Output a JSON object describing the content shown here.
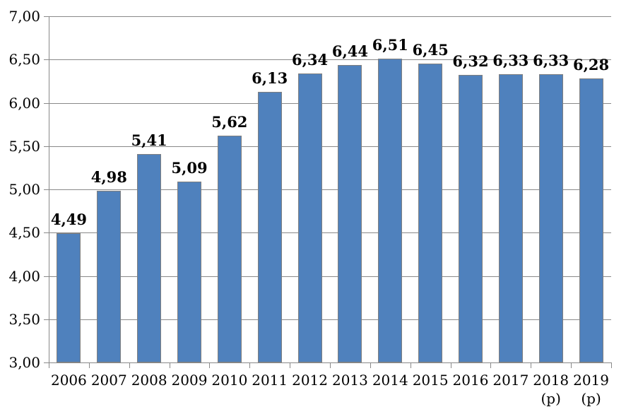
{
  "chart_data": {
    "type": "bar",
    "title": "",
    "xlabel": "",
    "ylabel": "",
    "categories": [
      "2006",
      "2007",
      "2008",
      "2009",
      "2010",
      "2011",
      "2012",
      "2013",
      "2014",
      "2015",
      "2016",
      "2017",
      "2018",
      "2019"
    ],
    "category_suffixes": [
      "",
      "",
      "",
      "",
      "",
      "",
      "",
      "",
      "",
      "",
      "",
      "",
      "(p)",
      "(p)"
    ],
    "values": [
      4.49,
      4.98,
      5.41,
      5.09,
      5.62,
      6.13,
      6.34,
      6.44,
      6.51,
      6.45,
      6.32,
      6.33,
      6.33,
      6.28
    ],
    "value_labels": [
      "4,49",
      "4,98",
      "5,41",
      "5,09",
      "5,62",
      "6,13",
      "6,34",
      "6,44",
      "6,51",
      "6,45",
      "6,32",
      "6,33",
      "6,33",
      "6,28"
    ],
    "ylim": [
      3.0,
      7.0
    ],
    "ytick_step": 0.5,
    "ytick_labels_top_to_bottom": [
      "7,00",
      "6,50",
      "6,00",
      "5,50",
      "5,00",
      "4,50",
      "4,00",
      "3,50",
      "3,00"
    ],
    "grid_on": true,
    "legend": "none",
    "colors": {
      "bar_fill": "#4F81BD",
      "bar_border": "#7F7F7F",
      "gridline": "#898989",
      "axis": "#898989",
      "text": "#000000"
    }
  }
}
